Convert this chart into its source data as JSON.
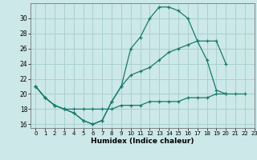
{
  "xlabel": "Humidex (Indice chaleur)",
  "bg_color": "#cce8e8",
  "line_color": "#1a7a6e",
  "grid_color": "#aad0d0",
  "xlim": [
    -0.5,
    23
  ],
  "ylim": [
    15.5,
    32
  ],
  "yticks": [
    16,
    18,
    20,
    22,
    24,
    26,
    28,
    30
  ],
  "xticks": [
    0,
    1,
    2,
    3,
    4,
    5,
    6,
    7,
    8,
    9,
    10,
    11,
    12,
    13,
    14,
    15,
    16,
    17,
    18,
    19,
    20,
    21,
    22,
    23
  ],
  "line1_x": [
    0,
    1,
    2,
    3,
    4,
    5,
    6,
    7,
    8,
    9,
    10,
    11,
    12,
    13,
    14,
    15,
    16,
    17,
    18,
    19,
    20
  ],
  "line1_y": [
    21,
    19.5,
    18.5,
    18,
    17.5,
    16.5,
    16,
    16.5,
    19,
    21,
    26,
    27.5,
    30,
    31.5,
    31.5,
    31,
    30,
    27,
    24.5,
    20.5,
    20
  ],
  "line2_x": [
    0,
    1,
    2,
    3,
    4,
    5,
    6,
    7,
    8,
    9,
    10,
    11,
    12,
    13,
    14,
    15,
    16,
    17,
    18,
    19,
    20
  ],
  "line2_y": [
    21,
    19.5,
    18.5,
    18,
    17.5,
    16.5,
    16,
    16.5,
    19,
    21,
    22.5,
    23,
    23.5,
    24.5,
    25.5,
    26,
    26.5,
    27,
    27,
    27,
    24
  ],
  "line3_x": [
    0,
    1,
    2,
    3,
    4,
    5,
    6,
    7,
    8,
    9,
    10,
    11,
    12,
    13,
    14,
    15,
    16,
    17,
    18,
    19,
    20,
    21,
    22
  ],
  "line3_y": [
    21,
    19.5,
    18.5,
    18,
    18,
    18,
    18,
    18,
    18,
    18.5,
    18.5,
    18.5,
    19,
    19,
    19,
    19,
    19.5,
    19.5,
    19.5,
    20,
    20,
    20,
    20
  ]
}
